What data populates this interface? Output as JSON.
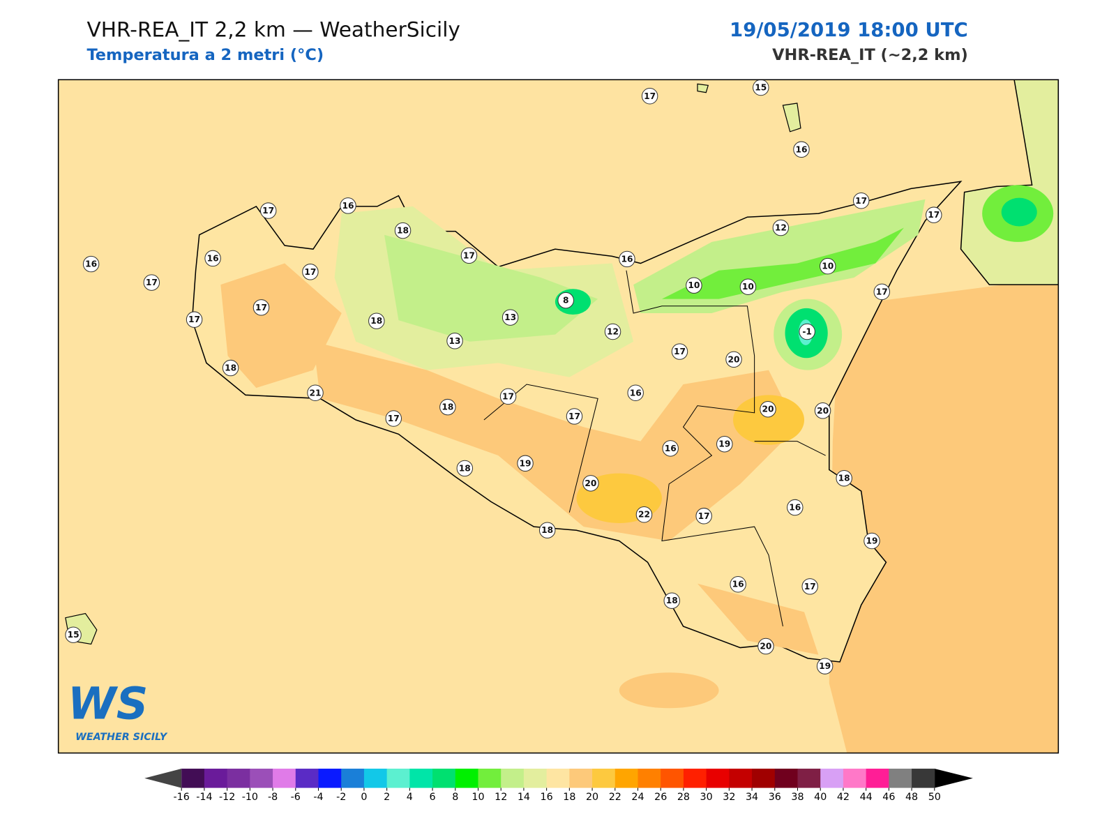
{
  "header": {
    "title": "VHR-REA_IT 2,2 km — WeatherSicily",
    "subtitle": "Temperatura a 2 metri (°C)",
    "datetime": "19/05/2019 18:00 UTC",
    "model": "VHR-REA_IT (~2,2 km)"
  },
  "stations": [
    17,
    15,
    16,
    17,
    17,
    12,
    10,
    17,
    16,
    10,
    10,
    -1,
    17,
    16,
    18,
    17,
    16,
    16,
    17,
    17,
    17,
    17,
    18,
    13,
    8,
    12,
    13,
    17,
    20,
    18,
    21,
    17,
    16,
    20,
    20,
    17,
    18,
    17,
    16,
    19,
    18,
    19,
    20,
    18,
    22,
    17,
    16,
    19,
    18,
    18,
    16,
    17,
    20,
    19,
    15
  ],
  "colorbar": {
    "ticks": [
      -16,
      -14,
      -12,
      -10,
      -8,
      -6,
      -4,
      -2,
      0,
      2,
      4,
      6,
      8,
      10,
      12,
      14,
      16,
      18,
      20,
      22,
      24,
      26,
      28,
      30,
      32,
      34,
      36,
      38,
      40,
      42,
      44,
      46,
      48,
      50
    ],
    "colors": [
      "#420d55",
      "#6a1b9a",
      "#7b2fa0",
      "#9b4fb8",
      "#e07be8",
      "#5a2bc5",
      "#0a1aff",
      "#1a7fd8",
      "#12c8e8",
      "#5cf0d0",
      "#00e5a8",
      "#00e070",
      "#00f000",
      "#72ee3c",
      "#c3ef8a",
      "#e3ee9e",
      "#fee5a2",
      "#fdc97a",
      "#fdc93f",
      "#ffa500",
      "#ff8000",
      "#ff5500",
      "#ff2000",
      "#e80000",
      "#c40000",
      "#a00000",
      "#70001e",
      "#7f1f45",
      "#d8a0f5",
      "#ff78c8",
      "#ff1e96",
      "#808080",
      "#383838"
    ],
    "under_color": "#444444",
    "over_color": "#000000"
  },
  "logo": {
    "mark": "WS",
    "text": "WEATHER SICILY"
  }
}
